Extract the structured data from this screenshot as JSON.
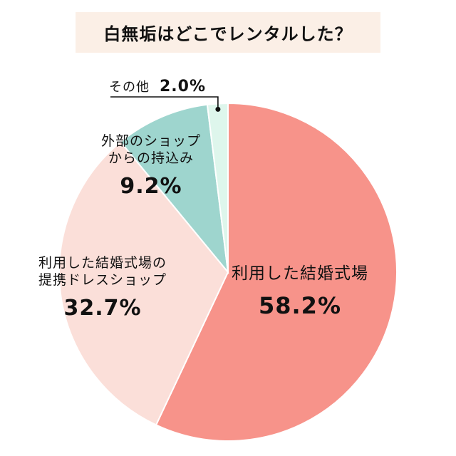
{
  "title": "白無垢はどこでレンタルした？",
  "chart_data": {
    "type": "pie",
    "title": "白無垢はどこでレンタルした？",
    "start": "12 o'clock",
    "direction": "clockwise",
    "slices": [
      {
        "label": "利用した結婚式場",
        "label_lines": [
          "利用した結婚式場"
        ],
        "value": 58.2,
        "display": "58.2%",
        "color": "#f7938a"
      },
      {
        "label": "利用した結婚式場の提携ドレスショップ",
        "label_lines": [
          "利用した結婚式場の",
          "提携ドレスショップ"
        ],
        "value": 32.7,
        "display": "32.7%",
        "color": "#fbdfd9"
      },
      {
        "label": "外部のショップからの持込み",
        "label_lines": [
          "外部のショップ",
          "からの持込み"
        ],
        "value": 9.2,
        "display": "9.2%",
        "color": "#9ed5ce"
      },
      {
        "label": "その他",
        "label_lines": [
          "その他"
        ],
        "value": 2.0,
        "display": "2.0%",
        "color": "#def6ec"
      }
    ]
  }
}
